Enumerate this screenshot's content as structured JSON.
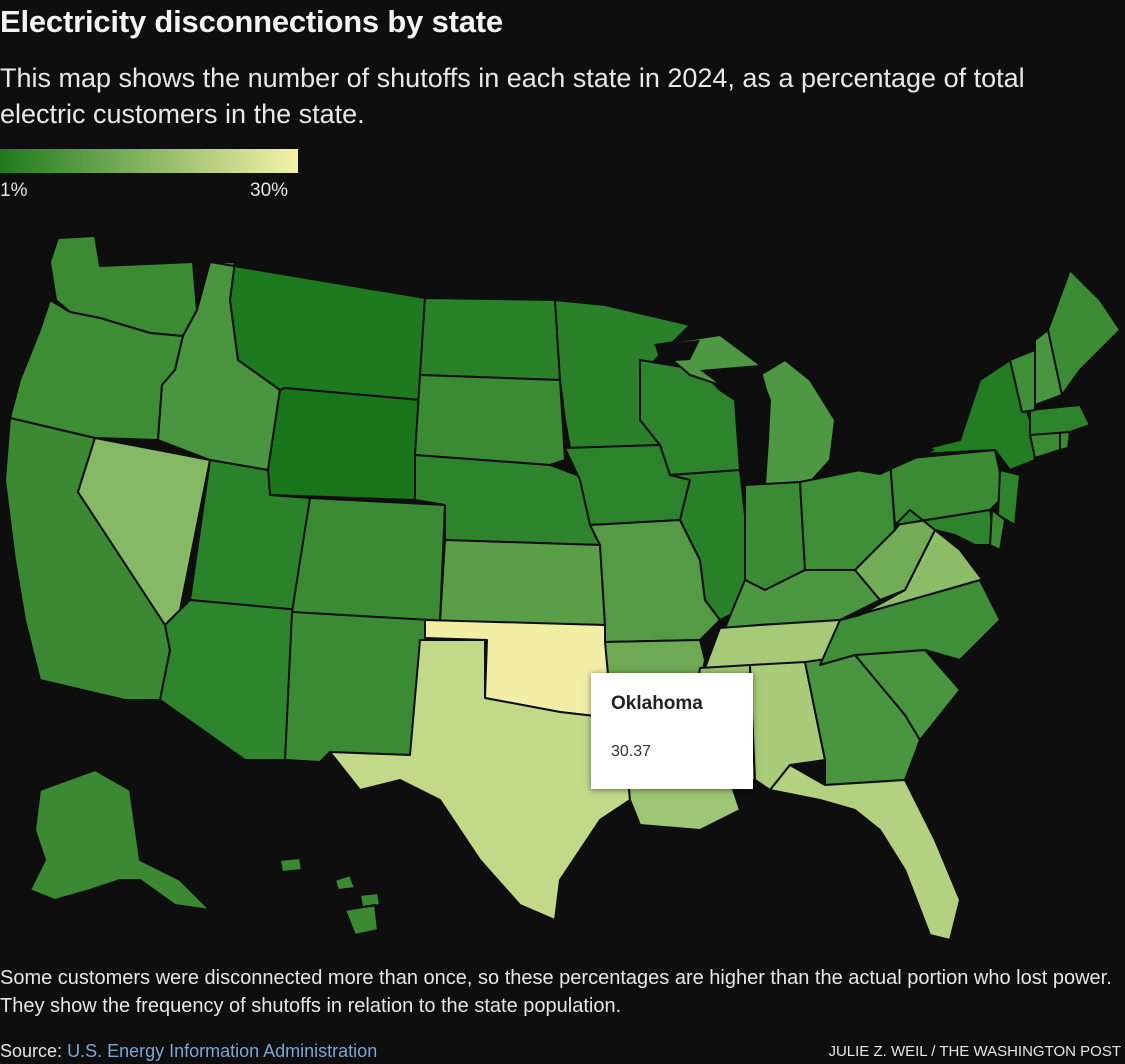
{
  "header": {
    "title": "Electricity disconnections by state",
    "subtitle": "This map shows the number of shutoffs in each state in 2024, as a percentage of total electric customers in the state."
  },
  "legend": {
    "min_label": "1%",
    "max_label": "30%",
    "color_low": "#1e7a1e",
    "color_high": "#f6f2a8"
  },
  "tooltip": {
    "state": "Oklahoma",
    "value": "30.37"
  },
  "footnote": "Some customers were disconnected more than once, so these percentages are higher than the actual portion who lost power. They show the frequency of shutoffs in relation to the state population.",
  "source": {
    "label": "Source:",
    "link_text": "U.S. Energy Information Administration"
  },
  "credit": "JULIE Z. WEIL / THE WASHINGTON POST",
  "colors": {
    "background": "#0e0e0e",
    "state_border": "#0e0e0e",
    "water": "#0e0e0e"
  },
  "states": [
    {
      "name": "Washington",
      "fill": "#3a8b32"
    },
    {
      "name": "Oregon",
      "fill": "#3d8d35"
    },
    {
      "name": "California",
      "fill": "#3b8a33"
    },
    {
      "name": "Nevada",
      "fill": "#86b966"
    },
    {
      "name": "Idaho",
      "fill": "#4a9540"
    },
    {
      "name": "Montana",
      "fill": "#1e7a1e"
    },
    {
      "name": "Wyoming",
      "fill": "#1a761b"
    },
    {
      "name": "Utah",
      "fill": "#2a822a"
    },
    {
      "name": "Arizona",
      "fill": "#2f852d"
    },
    {
      "name": "Colorado",
      "fill": "#3a8b33"
    },
    {
      "name": "New Mexico",
      "fill": "#3a8b33"
    },
    {
      "name": "North Dakota",
      "fill": "#2a812a"
    },
    {
      "name": "South Dakota",
      "fill": "#3b8b34"
    },
    {
      "name": "Nebraska",
      "fill": "#2f842e"
    },
    {
      "name": "Kansas",
      "fill": "#5a9e47"
    },
    {
      "name": "Oklahoma",
      "fill": "#f3eea6"
    },
    {
      "name": "Texas",
      "fill": "#c2d98a"
    },
    {
      "name": "Minnesota",
      "fill": "#2a812a"
    },
    {
      "name": "Iowa",
      "fill": "#2c832c"
    },
    {
      "name": "Missouri",
      "fill": "#559b45"
    },
    {
      "name": "Arkansas",
      "fill": "#6fa955"
    },
    {
      "name": "Louisiana",
      "fill": "#9fc675"
    },
    {
      "name": "Wisconsin",
      "fill": "#2e842d"
    },
    {
      "name": "Illinois",
      "fill": "#2a812a"
    },
    {
      "name": "Michigan",
      "fill": "#4e9843"
    },
    {
      "name": "Indiana",
      "fill": "#3b8b34"
    },
    {
      "name": "Ohio",
      "fill": "#3e8d37"
    },
    {
      "name": "Kentucky",
      "fill": "#4d9742"
    },
    {
      "name": "Tennessee",
      "fill": "#a7ca78"
    },
    {
      "name": "Mississippi",
      "fill": "#9ec574"
    },
    {
      "name": "Alabama",
      "fill": "#a9cc7a"
    },
    {
      "name": "Georgia",
      "fill": "#4a9540"
    },
    {
      "name": "Florida",
      "fill": "#b3d181"
    },
    {
      "name": "South Carolina",
      "fill": "#4a9540"
    },
    {
      "name": "North Carolina",
      "fill": "#3f8e38"
    },
    {
      "name": "Virginia",
      "fill": "#8dbd69"
    },
    {
      "name": "West Virginia",
      "fill": "#73ad58"
    },
    {
      "name": "Pennsylvania",
      "fill": "#3a8b33"
    },
    {
      "name": "New York",
      "fill": "#237d23"
    },
    {
      "name": "New Jersey",
      "fill": "#2e842d"
    },
    {
      "name": "Maryland",
      "fill": "#2e842d"
    },
    {
      "name": "Delaware",
      "fill": "#3a8b33"
    },
    {
      "name": "Connecticut",
      "fill": "#3a8b33"
    },
    {
      "name": "Rhode Island",
      "fill": "#3a8b33"
    },
    {
      "name": "Massachusetts",
      "fill": "#2e842d"
    },
    {
      "name": "Vermont",
      "fill": "#3f8e38"
    },
    {
      "name": "New Hampshire",
      "fill": "#4a9540"
    },
    {
      "name": "Maine",
      "fill": "#3c8c35"
    },
    {
      "name": "Alaska",
      "fill": "#3b8a33"
    },
    {
      "name": "Hawaii",
      "fill": "#3b8a33"
    }
  ]
}
